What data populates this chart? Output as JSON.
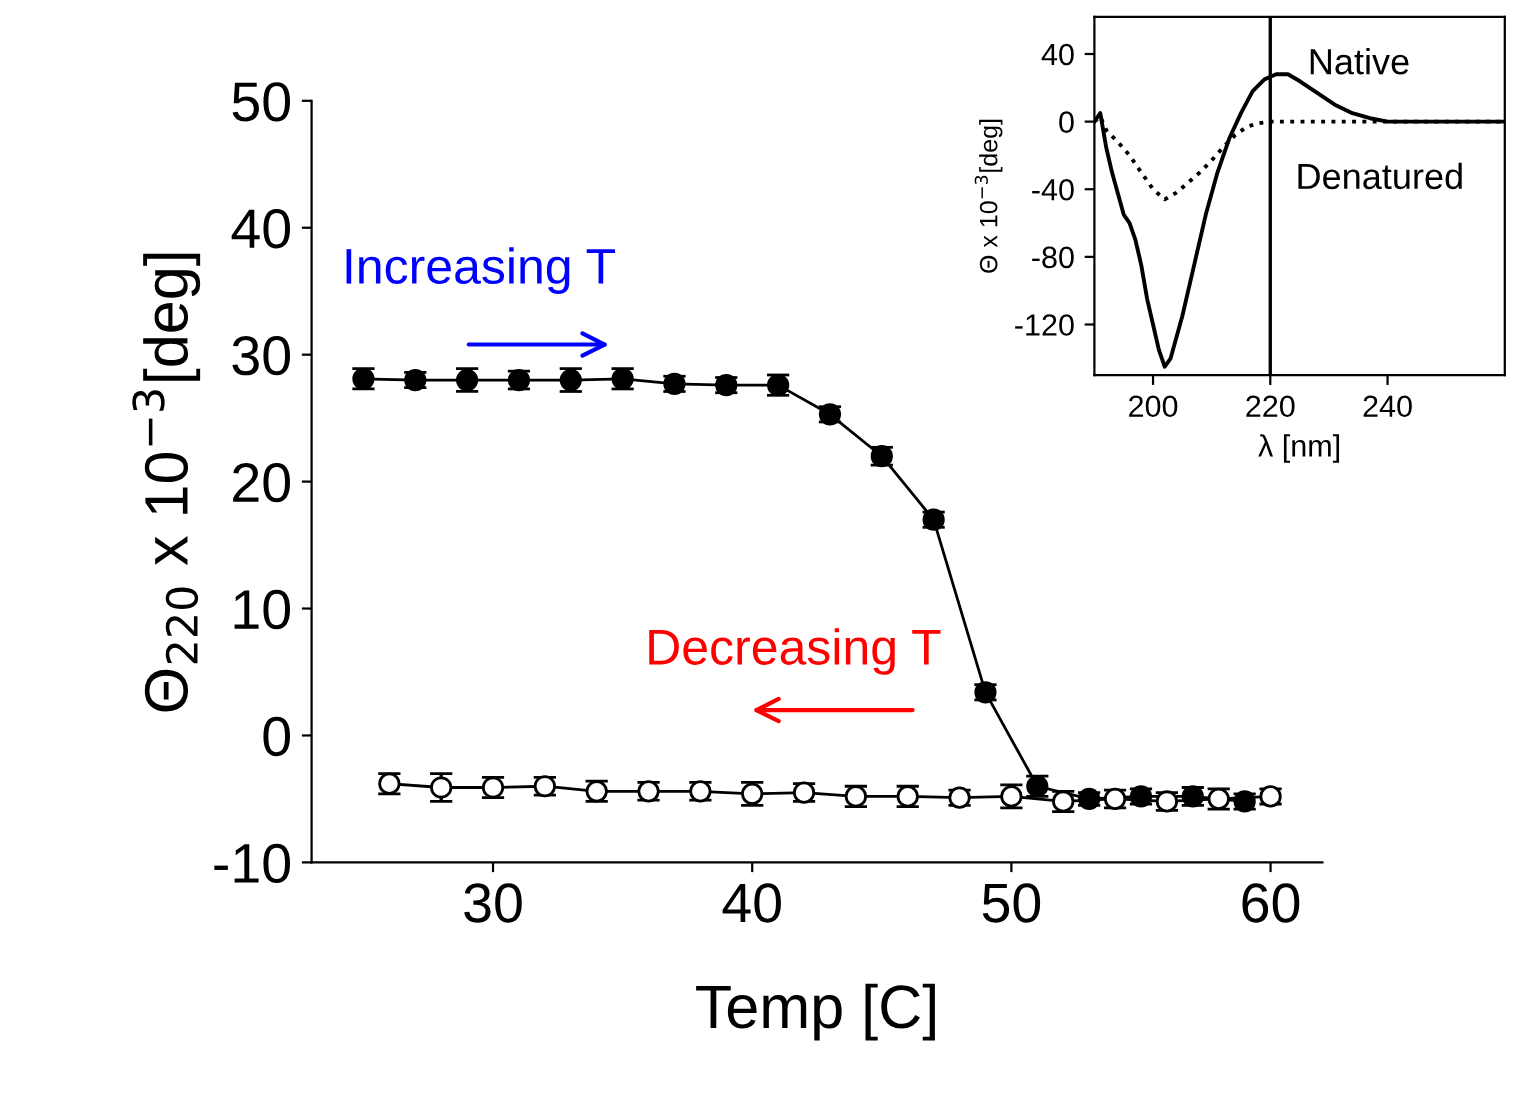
{
  "chart_data": [
    {
      "type": "line",
      "xlabel": "Temp [C]",
      "ylabel": "Θ$_{220}$ x 10$^{−3}$[deg]",
      "xlim": [
        23,
        62
      ],
      "ylim": [
        -10,
        50
      ],
      "xticks": [
        30,
        40,
        50,
        60
      ],
      "yticks": [
        -10,
        0,
        10,
        20,
        30,
        40,
        50
      ],
      "grid": false,
      "legend": false,
      "marker": "circle",
      "line_style": "solid",
      "annotations": [
        "Increasing T",
        "Decreasing T"
      ],
      "series": [
        {
          "color": "#000000",
          "x": [
            25,
            27,
            29,
            31,
            33,
            35,
            37,
            39,
            41,
            43,
            45,
            47,
            49,
            51,
            53,
            55,
            57,
            59
          ],
          "values": [
            28.1,
            28.0,
            28.0,
            28.0,
            28.0,
            28.1,
            27.7,
            27.6,
            27.6,
            25.3,
            22.0,
            17.0,
            3.4,
            -4.0,
            -5.0,
            -4.8,
            -4.8,
            -5.2
          ],
          "errors": [
            0.8,
            0.6,
            0.9,
            0.7,
            0.9,
            0.8,
            0.6,
            0.6,
            0.8,
            0.6,
            0.7,
            0.6,
            0.6,
            0.8,
            0.5,
            0.6,
            0.7,
            0.6
          ]
        },
        {
          "color": "#000000",
          "x": [
            26,
            28,
            30,
            32,
            34,
            36,
            38,
            40,
            42,
            44,
            46,
            48,
            50,
            52,
            54,
            56,
            58,
            60
          ],
          "values": [
            -3.8,
            -4.1,
            -4.1,
            -4.0,
            -4.4,
            -4.4,
            -4.4,
            -4.6,
            -4.5,
            -4.8,
            -4.8,
            -4.9,
            -4.8,
            -5.2,
            -5.0,
            -5.2,
            -5.0,
            -4.8
          ],
          "errors": [
            0.8,
            1.1,
            0.8,
            0.7,
            0.8,
            0.7,
            0.7,
            0.9,
            0.7,
            0.8,
            0.8,
            0.6,
            0.9,
            0.8,
            0.7,
            0.7,
            0.8,
            0.6
          ]
        }
      ]
    },
    {
      "type": "line",
      "xlabel": "λ [nm]",
      "ylabel": "Θ x 10$^{−3}$[deg]",
      "xlim": [
        190,
        260
      ],
      "ylim": [
        -150,
        62
      ],
      "xticks": [
        200,
        220,
        240
      ],
      "yticks": [
        -120,
        -80,
        -40,
        0,
        40
      ],
      "grid": false,
      "legend": false,
      "marker": "none",
      "annotations": [
        "Native",
        "Denatured"
      ],
      "ref_lines": [
        {
          "axis": "x",
          "value": 220,
          "color": "#000000",
          "line_style": "solid"
        }
      ],
      "series": [
        {
          "color": "#000000",
          "line_style": "solid",
          "x": [
            190,
            191,
            192,
            193,
            195,
            196,
            197,
            198,
            199,
            200,
            201,
            202,
            203,
            205,
            207,
            209,
            211,
            213,
            215,
            217,
            219,
            221,
            223,
            225,
            228,
            231,
            234,
            237,
            240,
            250,
            260
          ],
          "values": [
            0,
            5,
            -15,
            -30,
            -55,
            -60,
            -70,
            -85,
            -105,
            -120,
            -135,
            -145,
            -140,
            -115,
            -85,
            -55,
            -30,
            -10,
            5,
            18,
            25,
            28,
            28,
            24,
            17,
            10,
            5,
            2,
            0,
            0,
            0
          ]
        },
        {
          "color": "#000000",
          "line_style": "dotted",
          "x": [
            190,
            191,
            192,
            194,
            196,
            198,
            200,
            202,
            204,
            206,
            208,
            210,
            212,
            214,
            216,
            218,
            220,
            240,
            260
          ],
          "values": [
            0,
            3,
            -5,
            -12,
            -20,
            -30,
            -40,
            -46,
            -42,
            -36,
            -30,
            -23,
            -15,
            -8,
            -3,
            -1,
            0,
            0,
            0
          ]
        }
      ]
    }
  ]
}
